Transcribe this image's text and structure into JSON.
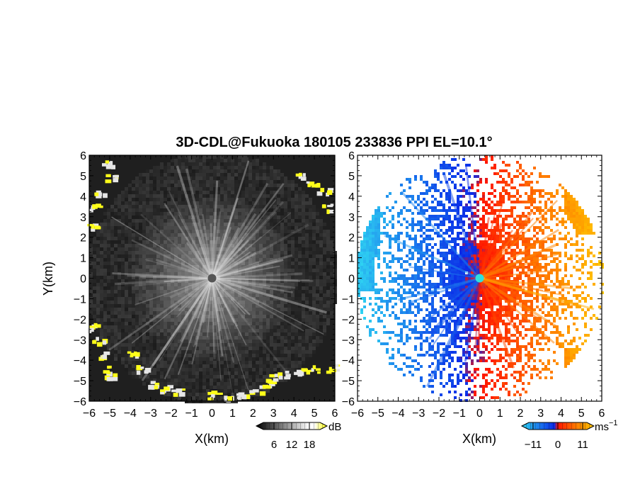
{
  "title": "3D-CDL@Fukuoka 180105 233836 PPI EL=10.1°",
  "chart_data": [
    {
      "type": "heatmap",
      "quantity": "reflectivity",
      "xlabel": "X(km)",
      "ylabel": "Y(km)",
      "xlim": [
        -6,
        6
      ],
      "ylim": [
        -6,
        6
      ],
      "x_ticks": [
        "−6",
        "−5",
        "−4",
        "−3",
        "−2",
        "−1",
        "0",
        "1",
        "2",
        "3",
        "4",
        "5",
        "6"
      ],
      "y_ticks": [
        "−6",
        "−5",
        "−4",
        "−3",
        "−2",
        "−1",
        "0",
        "1",
        "2",
        "3",
        "4",
        "5",
        "6"
      ],
      "colorbar": {
        "unit": "dB",
        "ticks": [
          "6",
          "12",
          "18"
        ],
        "tick_values": [
          6,
          12,
          18
        ],
        "range": [
          0,
          24
        ],
        "colors": [
          "#000000",
          "#ffffff",
          "#ffff00"
        ]
      },
      "pattern": "radial streaks brightest near the origin, yellow echoes on the W, S and NE edges"
    },
    {
      "type": "heatmap",
      "quantity": "radial velocity",
      "xlabel": "X(km)",
      "xlim": [
        -6,
        6
      ],
      "ylim": [
        -6,
        6
      ],
      "x_ticks": [
        "−6",
        "−5",
        "−4",
        "−3",
        "−2",
        "−1",
        "0",
        "1",
        "2",
        "3",
        "4",
        "5",
        "6"
      ],
      "y_ticks": [
        "−6",
        "−5",
        "−4",
        "−3",
        "−2",
        "−1",
        "0",
        "1",
        "2",
        "3",
        "4",
        "5",
        "6"
      ],
      "colorbar": {
        "unit": "ms",
        "unit_sup": "−1",
        "ticks": [
          "−11",
          "0",
          "11"
        ],
        "tick_values": [
          -11,
          0,
          11
        ],
        "range": [
          -16,
          16
        ],
        "colors": [
          "#29c5ef",
          "#0a2be8",
          "#ff1500",
          "#ffc500"
        ]
      },
      "pattern": "negative (blue) to the west, positive (red/orange) to the east"
    }
  ]
}
